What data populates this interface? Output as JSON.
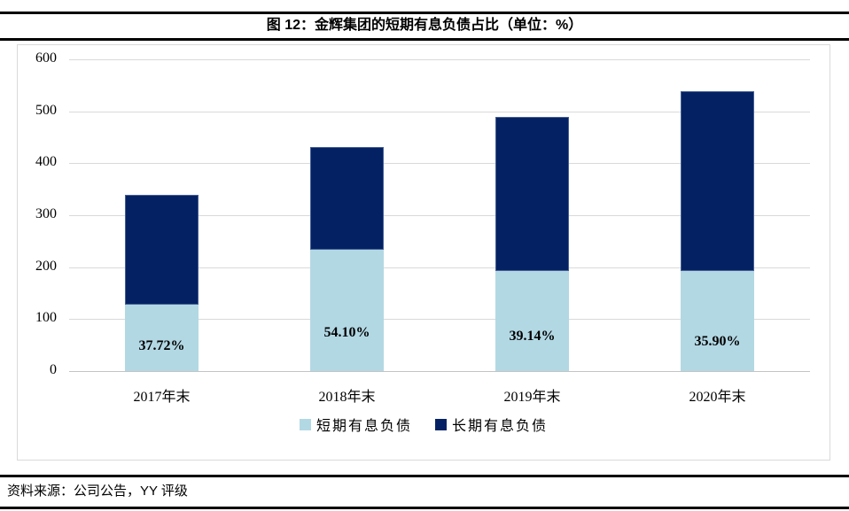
{
  "header": {
    "title": "图 12：金辉集团的短期有息负债占比（单位：%）"
  },
  "footer": {
    "source": "资料来源：公司公告，YY 评级"
  },
  "colors": {
    "short_term": "#b2d8e4",
    "long_term": "#042263",
    "gridline": "#d9d9d9",
    "axis_line": "#c3c3c3",
    "frame_border": "#d9d9d9",
    "rule": "#000000"
  },
  "chart_data": {
    "type": "bar",
    "stacked": true,
    "title": "图 12：金辉集团的短期有息负债占比（单位：%）",
    "categories": [
      "2017年末",
      "2018年末",
      "2019年末",
      "2020年末"
    ],
    "series": [
      {
        "name": "短期有息负债",
        "color": "#b2d8e4",
        "values": [
          128,
          234,
          192,
          193
        ]
      },
      {
        "name": "长期有息负债",
        "color": "#042263",
        "values": [
          212,
          198,
          298,
          345
        ]
      }
    ],
    "totals": [
      340,
      432,
      490,
      538
    ],
    "bar_labels": [
      "37.72%",
      "54.10%",
      "39.14%",
      "35.90%"
    ],
    "y_ticks": [
      0,
      100,
      200,
      300,
      400,
      500,
      600
    ],
    "ylim": [
      0,
      600
    ],
    "grid": true,
    "legend_position": "bottom"
  }
}
